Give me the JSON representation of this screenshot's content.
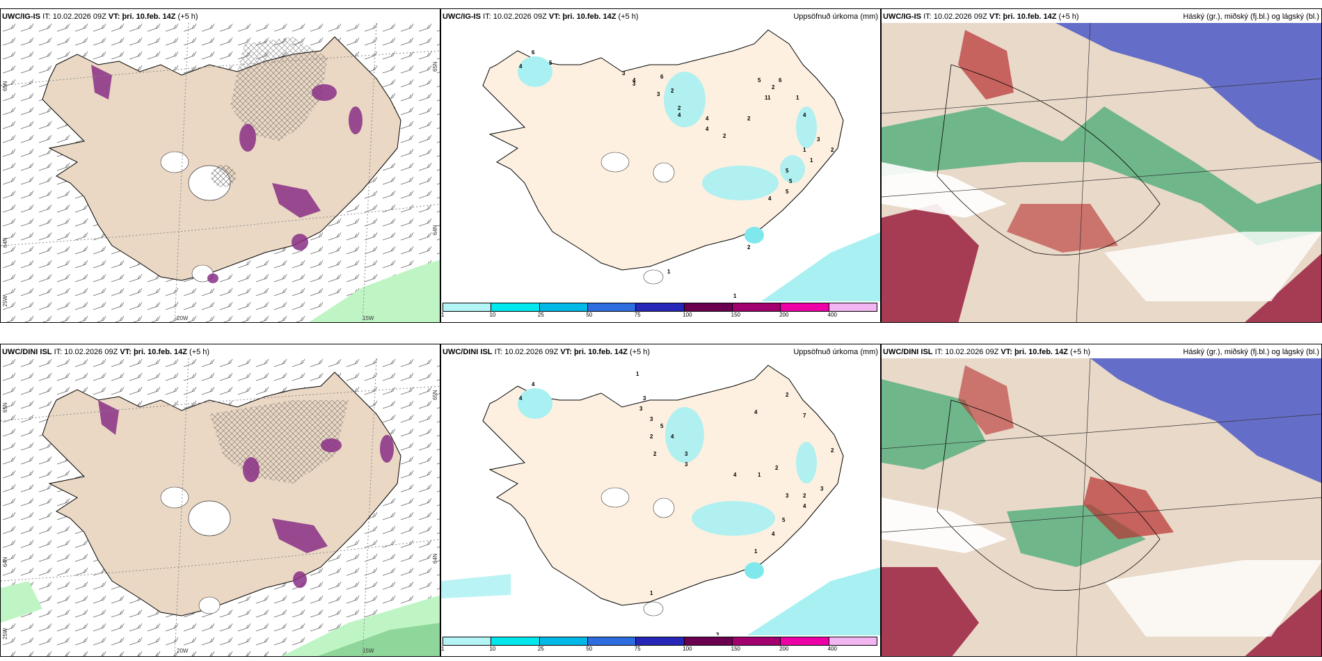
{
  "rows": [
    {
      "model": "UWC/IG-IS",
      "it_label": "IT:",
      "it_value": "10.02.2026 09Z",
      "vt_label": "VT:",
      "vt_value": "þri. 10.feb. 14Z",
      "offset": "(+5 h)",
      "precip_numbers": [
        "6",
        "4",
        "5",
        "3",
        "4",
        "3",
        "6",
        "2",
        "3",
        "2",
        "4",
        "4",
        "4",
        "2",
        "2",
        "5",
        "11",
        "2",
        "6",
        "1",
        "4",
        "1",
        "1",
        "3",
        "2",
        "5",
        "5",
        "5",
        "4",
        "2",
        "1",
        "1"
      ]
    },
    {
      "model": "UWC/DINI ISL",
      "it_label": "IT:",
      "it_value": "10.02.2026 09Z",
      "vt_label": "VT:",
      "vt_value": "þri. 10.feb. 14Z",
      "offset": "(+5 h)",
      "precip_numbers": [
        "4",
        "4",
        "1",
        "3",
        "3",
        "3",
        "5",
        "2",
        "4",
        "2",
        "3",
        "3",
        "2",
        "4",
        "7",
        "2",
        "4",
        "1",
        "2",
        "5",
        "4",
        "3",
        "2",
        "4",
        "3",
        "1",
        "1",
        "3"
      ]
    }
  ],
  "precip_title": "Uppsöfnuð úrkoma (mm)",
  "cloud_title": "Háský (gr.), miðský (fj.bl.) og lágský (bl.)",
  "lat_labels": [
    "65N",
    "64N"
  ],
  "lat_labels_right": [
    "65N",
    "64N"
  ],
  "lon_labels": [
    "20W",
    "15W"
  ],
  "left_edge_label": "25W",
  "legend_ticks": [
    "1",
    "10",
    "25",
    "50",
    "75",
    "100",
    "150",
    "200",
    "400"
  ],
  "legend_colors": [
    "#b3f5f7",
    "#00e8ee",
    "#00b9e6",
    "#2e6de0",
    "#2626b8",
    "#6b0051",
    "#a3006f",
    "#ee00a8",
    "#f2b6f2"
  ],
  "colors": {
    "land": "#ead8c4",
    "land_light": "#fdf0e0",
    "precip_light": "#a8f0f2",
    "purple": "#8a2f86",
    "green_bg": "#bff5c4",
    "cloud_blue": "#5560c8",
    "cloud_red": "#b83030",
    "cloud_green": "#3aa870"
  }
}
